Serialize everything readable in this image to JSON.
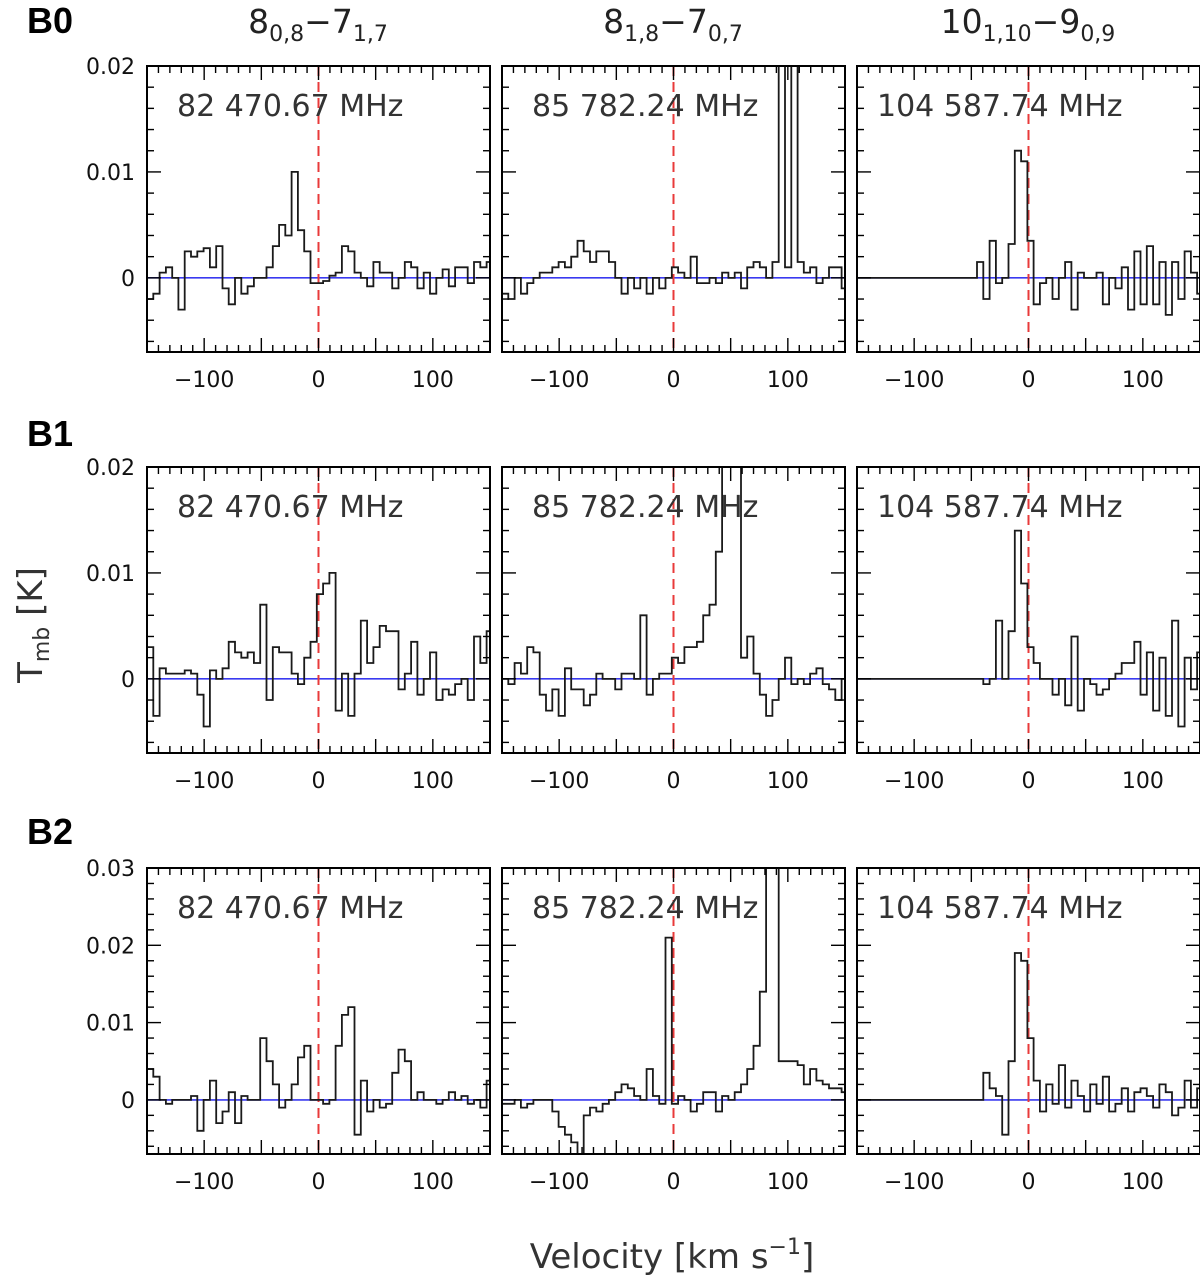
{
  "figure": {
    "row_labels": [
      "B0",
      "B1",
      "B2"
    ],
    "column_titles": [
      {
        "j1": "8",
        "s1": "0,8",
        "dash": "−",
        "j2": "7",
        "s2": "1,7"
      },
      {
        "j1": "8",
        "s1": "1,8",
        "dash": "−",
        "j2": "7",
        "s2": "0,7"
      },
      {
        "j1": "10",
        "s1": "1,10",
        "dash": "−",
        "j2": "9",
        "s2": "0,9"
      }
    ],
    "frequencies": [
      "82 470.67 MHz",
      "85 782.24 MHz",
      "104 587.74 MHz"
    ],
    "xlabel": {
      "main": "Velocity [km s",
      "sup": "−1",
      "end": "]"
    },
    "ylabel": {
      "main": "T",
      "sub": "mb",
      "end": " [K]"
    },
    "colors": {
      "spectrum": "#1a1a1a",
      "baseline": "#3a3af0",
      "vline": "#e83a3a",
      "frame": "#000000"
    }
  },
  "chart_data": [
    {
      "type": "histogram-line",
      "row": "B0",
      "line": "8(0,8)-7(1,7)",
      "freq_label": "82 470.67 MHz",
      "xlim": [
        -150,
        150
      ],
      "ylim": [
        -0.007,
        0.02
      ],
      "xticks": [
        -100,
        0,
        100
      ],
      "yticks": [
        0,
        0.01,
        0.02
      ],
      "ytick_labels": [
        "0",
        "0.01",
        "0.02"
      ],
      "vstart": -150,
      "dv": 5.5,
      "values": [
        -0.002,
        -0.0015,
        0.0005,
        0.001,
        0.0,
        -0.003,
        0.0025,
        0.002,
        0.0025,
        0.0028,
        0.001,
        0.003,
        -0.001,
        -0.0025,
        0.0,
        -0.0015,
        -0.0008,
        0.0,
        0.0,
        0.001,
        0.003,
        0.005,
        0.004,
        0.01,
        0.0045,
        0.0025,
        -0.0005,
        -0.0005,
        -0.0003,
        0.0002,
        0.0005,
        0.003,
        0.0025,
        0.0005,
        0.0,
        -0.0008,
        0.0015,
        0.0005,
        0.0005,
        -0.001,
        0.0,
        0.0015,
        0.001,
        -0.001,
        0.0005,
        -0.0015,
        0.0,
        0.0008,
        -0.0008,
        0.001,
        0.001,
        -0.0005,
        0.0015,
        0.001,
        0.0015
      ]
    },
    {
      "type": "histogram-line",
      "row": "B0",
      "line": "8(1,8)-7(0,7)",
      "freq_label": "85 782.24 MHz",
      "xlim": [
        -150,
        150
      ],
      "ylim": [
        -0.007,
        0.02
      ],
      "xticks": [
        -100,
        0,
        100
      ],
      "yticks": [
        0,
        0.01,
        0.02
      ],
      "ytick_labels": [
        "0",
        "0.01",
        "0.02"
      ],
      "vstart": -150,
      "dv": 5.5,
      "values": [
        -0.0015,
        -0.002,
        0.0,
        -0.0015,
        -0.0005,
        0.0,
        0.0005,
        0.0005,
        0.001,
        0.0015,
        0.001,
        0.002,
        0.0035,
        0.0025,
        0.0015,
        0.0025,
        0.0025,
        0.0015,
        0.0,
        -0.0015,
        0.0,
        -0.001,
        0.0,
        -0.0015,
        0.0,
        -0.001,
        0.0,
        0.001,
        0.0005,
        0.0,
        0.002,
        -0.0005,
        -0.0005,
        0.0,
        -0.0005,
        0.0005,
        0.0,
        0.0005,
        -0.001,
        0.001,
        0.0015,
        0.001,
        0.0,
        0.0015,
        0.025,
        0.001,
        0.025,
        0.0015,
        0.0005,
        0.001,
        -0.0005,
        0.0,
        0.001,
        0.001,
        -0.001
      ]
    },
    {
      "type": "histogram-line",
      "row": "B0",
      "line": "10(1,10)-9(0,9)",
      "freq_label": "104 587.74 MHz",
      "xlim": [
        -150,
        150
      ],
      "ylim": [
        -0.007,
        0.02
      ],
      "xticks": [
        -100,
        0,
        100
      ],
      "yticks": [
        0,
        0.01,
        0.02
      ],
      "ytick_labels": [
        "0",
        "0.01",
        "0.02"
      ],
      "vstart": -45,
      "dv": 5.5,
      "values": [
        0.0015,
        -0.002,
        0.0035,
        -0.0005,
        0.0,
        0.0032,
        0.012,
        0.011,
        0.0035,
        -0.0025,
        -0.0005,
        0.0,
        -0.002,
        0.0,
        0.0015,
        -0.003,
        0.0005,
        0.0,
        0.0,
        0.0005,
        -0.0025,
        0.0,
        -0.001,
        0.001,
        -0.003,
        0.0025,
        -0.0025,
        0.003,
        -0.0025,
        0.0015,
        -0.0035,
        0.0015,
        -0.002,
        0.0025,
        0.0005,
        -0.0015,
        0.003,
        0.0025
      ]
    },
    {
      "type": "histogram-line",
      "row": "B1",
      "line": "8(0,8)-7(1,7)",
      "freq_label": "82 470.67 MHz",
      "xlim": [
        -150,
        150
      ],
      "ylim": [
        -0.007,
        0.02
      ],
      "xticks": [
        -100,
        0,
        100
      ],
      "yticks": [
        0,
        0.01,
        0.02
      ],
      "ytick_labels": [
        "0",
        "0.01",
        "0.02"
      ],
      "vstart": -150,
      "dv": 5.5,
      "values": [
        0.003,
        -0.0035,
        0.001,
        0.0005,
        0.0005,
        0.0005,
        0.0008,
        0.0005,
        -0.0015,
        -0.0045,
        0.0008,
        0.0,
        0.001,
        0.0035,
        0.0025,
        0.002,
        0.0025,
        0.0015,
        0.007,
        -0.002,
        0.003,
        0.0025,
        0.0025,
        0.0005,
        -0.0005,
        0.002,
        0.0035,
        0.008,
        0.009,
        0.01,
        -0.003,
        0.0005,
        -0.0035,
        0.0005,
        0.0055,
        0.0015,
        0.003,
        0.005,
        0.0045,
        0.0045,
        -0.001,
        0.0005,
        0.0035,
        -0.0015,
        0.0,
        0.0025,
        -0.002,
        -0.001,
        -0.0015,
        -0.0005,
        0.0,
        -0.002,
        0.004,
        0.0015,
        0.0045
      ]
    },
    {
      "type": "histogram-line",
      "row": "B1",
      "line": "8(1,8)-7(0,7)",
      "freq_label": "85 782.24 MHz",
      "xlim": [
        -150,
        150
      ],
      "ylim": [
        -0.007,
        0.02
      ],
      "xticks": [
        -100,
        0,
        100
      ],
      "yticks": [
        0,
        0.01,
        0.02
      ],
      "ytick_labels": [
        "0",
        "0.01",
        "0.02"
      ],
      "vstart": -150,
      "dv": 5.5,
      "values": [
        0.0,
        -0.0005,
        0.0015,
        0.0005,
        0.003,
        0.0025,
        -0.0015,
        -0.003,
        -0.001,
        -0.0035,
        0.001,
        -0.001,
        -0.001,
        -0.0025,
        -0.0015,
        0.0005,
        0.0,
        0.0,
        -0.001,
        0.0005,
        0.0005,
        0.0,
        0.006,
        -0.0015,
        0.0,
        0.0005,
        0.0005,
        0.002,
        0.0015,
        0.003,
        0.003,
        0.0035,
        0.006,
        0.007,
        0.012,
        0.025,
        0.025,
        0.025,
        0.002,
        0.004,
        0.0005,
        -0.0015,
        -0.0035,
        -0.002,
        0.0,
        0.002,
        -0.0005,
        0.0,
        -0.0005,
        0.0005,
        0.001,
        -0.0005,
        -0.001,
        -0.002,
        0.0
      ]
    },
    {
      "type": "histogram-line",
      "row": "B1",
      "line": "10(1,10)-9(0,9)",
      "freq_label": "104 587.74 MHz",
      "xlim": [
        -150,
        150
      ],
      "ylim": [
        -0.007,
        0.02
      ],
      "xticks": [
        -100,
        0,
        100
      ],
      "yticks": [
        0,
        0.01,
        0.02
      ],
      "ytick_labels": [
        "0",
        "0.01",
        "0.02"
      ],
      "vstart": -45,
      "dv": 5.5,
      "values": [
        0.0,
        -0.0005,
        0.0,
        0.0055,
        0.0,
        0.0045,
        0.014,
        0.009,
        0.003,
        0.0015,
        0.0,
        0.0,
        -0.0015,
        0.0,
        -0.0025,
        0.004,
        -0.003,
        0.0,
        -0.0005,
        -0.0015,
        -0.001,
        0.0,
        0.0005,
        0.0015,
        0.0015,
        0.0035,
        -0.0015,
        0.0025,
        -0.003,
        0.002,
        -0.0035,
        0.0055,
        -0.0045,
        0.002,
        -0.001,
        0.0025,
        0.0005,
        0.0025
      ]
    },
    {
      "type": "histogram-line",
      "row": "B2",
      "line": "8(0,8)-7(1,7)",
      "freq_label": "82 470.67 MHz",
      "xlim": [
        -150,
        150
      ],
      "ylim": [
        -0.007,
        0.03
      ],
      "xticks": [
        -100,
        0,
        100
      ],
      "yticks": [
        0,
        0.01,
        0.02,
        0.03
      ],
      "ytick_labels": [
        "0",
        "0.01",
        "0.02",
        "0.03"
      ],
      "vstart": -150,
      "dv": 5.5,
      "values": [
        0.004,
        0.003,
        0.0,
        -0.0005,
        0.0,
        0.0,
        0.0,
        0.0005,
        -0.004,
        0.0,
        0.0025,
        -0.003,
        -0.0015,
        0.001,
        -0.003,
        0.0005,
        0.0,
        0.0,
        0.008,
        0.005,
        0.002,
        -0.001,
        0.0,
        0.002,
        0.0055,
        0.007,
        0.0,
        0.0,
        -0.0005,
        0.0,
        0.007,
        0.011,
        0.012,
        -0.0045,
        0.0025,
        -0.0015,
        0.0,
        -0.001,
        -0.0005,
        0.0035,
        0.0065,
        0.005,
        0.0,
        0.001,
        0.0,
        0.0,
        -0.0005,
        0.0,
        0.001,
        0.0,
        0.0005,
        -0.0005,
        0.0,
        -0.001,
        0.0025,
        0.005
      ]
    },
    {
      "type": "histogram-line",
      "row": "B2",
      "line": "8(1,8)-7(0,7)",
      "freq_label": "85 782.24 MHz",
      "xlim": [
        -150,
        150
      ],
      "ylim": [
        -0.007,
        0.03
      ],
      "xticks": [
        -100,
        0,
        100
      ],
      "yticks": [
        0,
        0.01,
        0.02,
        0.03
      ],
      "ytick_labels": [
        "0",
        "0.01",
        "0.02",
        "0.03"
      ],
      "vstart": -150,
      "dv": 5.5,
      "values": [
        -0.0005,
        -0.0005,
        0.0,
        -0.001,
        -0.0005,
        0.0,
        0.0,
        0.0,
        -0.0015,
        -0.0035,
        -0.0045,
        -0.0055,
        -0.0075,
        -0.002,
        -0.001,
        -0.0015,
        -0.0005,
        0.0,
        0.001,
        0.002,
        0.0015,
        0.0005,
        0.0,
        0.004,
        0.0005,
        -0.0005,
        0.021,
        -0.0005,
        0.0005,
        0.0,
        -0.0015,
        -0.0005,
        0.001,
        0.001,
        -0.0015,
        0.0005,
        0.0,
        0.001,
        0.002,
        0.004,
        0.007,
        0.014,
        0.03,
        0.03,
        0.005,
        0.005,
        0.005,
        0.0045,
        0.002,
        0.004,
        0.0025,
        0.002,
        0.0015,
        0.0015,
        0.001,
        0.0005
      ]
    },
    {
      "type": "histogram-line",
      "row": "B2",
      "line": "10(1,10)-9(0,9)",
      "freq_label": "104 587.74 MHz",
      "xlim": [
        -150,
        150
      ],
      "ylim": [
        -0.007,
        0.03
      ],
      "xticks": [
        -100,
        0,
        100
      ],
      "yticks": [
        0,
        0.01,
        0.02,
        0.03
      ],
      "ytick_labels": [
        "0",
        "0.01",
        "0.02",
        "0.03"
      ],
      "vstart": -45,
      "dv": 5.5,
      "values": [
        0.0,
        0.0035,
        0.0015,
        0.0005,
        -0.0045,
        0.005,
        0.019,
        0.018,
        0.008,
        0.0025,
        -0.0015,
        0.002,
        -0.0005,
        0.0045,
        -0.001,
        0.0025,
        0.0005,
        -0.0015,
        0.002,
        -0.0005,
        0.003,
        -0.0015,
        -0.0005,
        0.0015,
        -0.0015,
        0.001,
        0.0015,
        0.0005,
        -0.001,
        0.002,
        0.001,
        -0.002,
        -0.001,
        0.0025,
        -0.001,
        0.0015,
        0.001,
        0.0025
      ]
    }
  ]
}
